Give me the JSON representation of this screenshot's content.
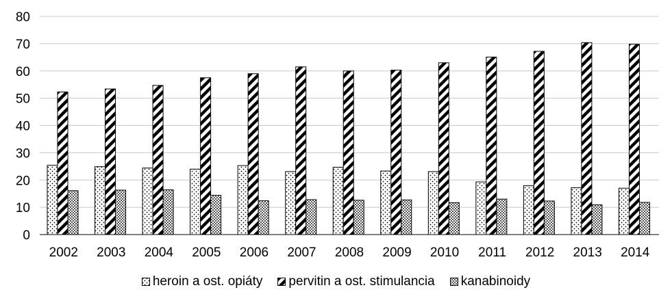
{
  "chart_data": {
    "type": "bar",
    "title": "",
    "xlabel": "",
    "ylabel": "",
    "categories": [
      "2002",
      "2003",
      "2004",
      "2005",
      "2006",
      "2007",
      "2008",
      "2009",
      "2010",
      "2011",
      "2012",
      "2013",
      "2014"
    ],
    "series": [
      {
        "name": "heroin a ost. opiáty",
        "pattern": "dots",
        "values": [
          25.4,
          24.9,
          24.4,
          24.0,
          25.3,
          23.1,
          24.7,
          23.3,
          23.1,
          19.3,
          17.9,
          17.2,
          17.0
        ]
      },
      {
        "name": "pervitin a ost. stimulancia",
        "pattern": "diagonal-stripes",
        "values": [
          52.3,
          53.4,
          54.7,
          57.5,
          59.0,
          61.5,
          60.0,
          60.3,
          63.0,
          65.1,
          67.2,
          70.4,
          69.8
        ]
      },
      {
        "name": "kanabinoidy",
        "pattern": "crosshatch",
        "values": [
          16.1,
          16.3,
          16.4,
          14.4,
          12.4,
          12.8,
          12.6,
          12.7,
          11.7,
          13.0,
          12.3,
          10.9,
          11.8
        ]
      }
    ],
    "ylim": [
      0,
      80
    ],
    "yticks": [
      0,
      10,
      20,
      30,
      40,
      50,
      60,
      70,
      80
    ],
    "grid": true,
    "legend": "bottom-center",
    "colors": {
      "grid": "#c8c8c8",
      "bar_outline": "#000000",
      "text": "#000000"
    }
  }
}
